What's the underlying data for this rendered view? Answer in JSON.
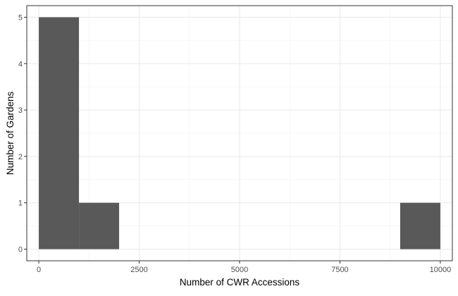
{
  "chart_data": {
    "type": "histogram",
    "title": "",
    "xlabel": "Number of CWR Accessions",
    "ylabel": "Number of Gardens",
    "xlim": [
      -300,
      10300
    ],
    "ylim": [
      -0.25,
      5.25
    ],
    "x_ticks": [
      0,
      2500,
      5000,
      7500,
      10000
    ],
    "x_minor_ticks": [
      1250,
      3750,
      6250,
      8750
    ],
    "y_ticks": [
      0,
      1,
      2,
      3,
      4,
      5
    ],
    "y_minor_ticks": [
      0.5,
      1.5,
      2.5,
      3.5,
      4.5
    ],
    "grid": true,
    "bin_width": 1000,
    "bins": [
      {
        "start": 0,
        "end": 1000,
        "count": 5
      },
      {
        "start": 1000,
        "end": 2000,
        "count": 1
      },
      {
        "start": 9000,
        "end": 10000,
        "count": 1
      }
    ],
    "colors": {
      "bar": "#595959",
      "grid_major": "#ebebeb",
      "grid_minor": "#f5f5f5",
      "panel_border": "#333333",
      "axis_text": "#4d4d4d",
      "title_text": "#000000"
    }
  }
}
